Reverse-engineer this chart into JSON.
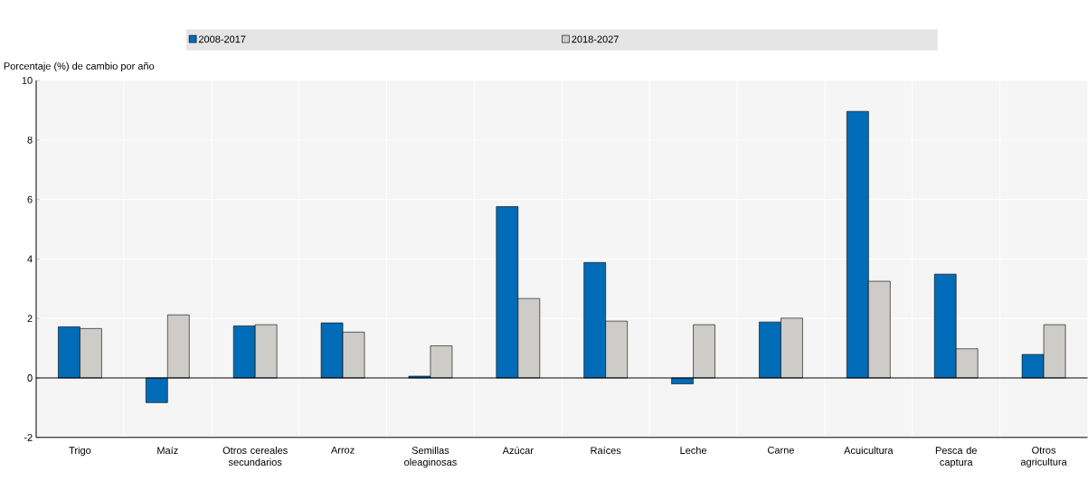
{
  "chart_data": {
    "type": "bar",
    "ylabel": "Porcentaje (%) de cambio por año",
    "categories": [
      "Trigo",
      "Maíz",
      "Otros cereales secundarios",
      "Arroz",
      "Semillas oleaginosas",
      "Azúcar",
      "Raíces",
      "Leche",
      "Carne",
      "Acuicultura",
      "Pesca de captura",
      "Otros agricultura"
    ],
    "series": [
      {
        "name": "2008-2017",
        "color": "#006bb6",
        "values": [
          1.72,
          -0.83,
          1.75,
          1.85,
          0.06,
          5.76,
          3.88,
          -0.2,
          1.88,
          8.96,
          3.49,
          0.79
        ]
      },
      {
        "name": "2018-2027",
        "color": "#cdccc8",
        "values": [
          1.66,
          2.12,
          1.79,
          1.54,
          1.08,
          2.67,
          1.91,
          1.79,
          2.01,
          3.25,
          0.98,
          1.79
        ]
      }
    ],
    "ylim": [
      -2,
      10
    ],
    "yticks": [
      -2,
      0,
      2,
      4,
      6,
      8,
      10
    ],
    "grid": true,
    "legend": "top"
  }
}
